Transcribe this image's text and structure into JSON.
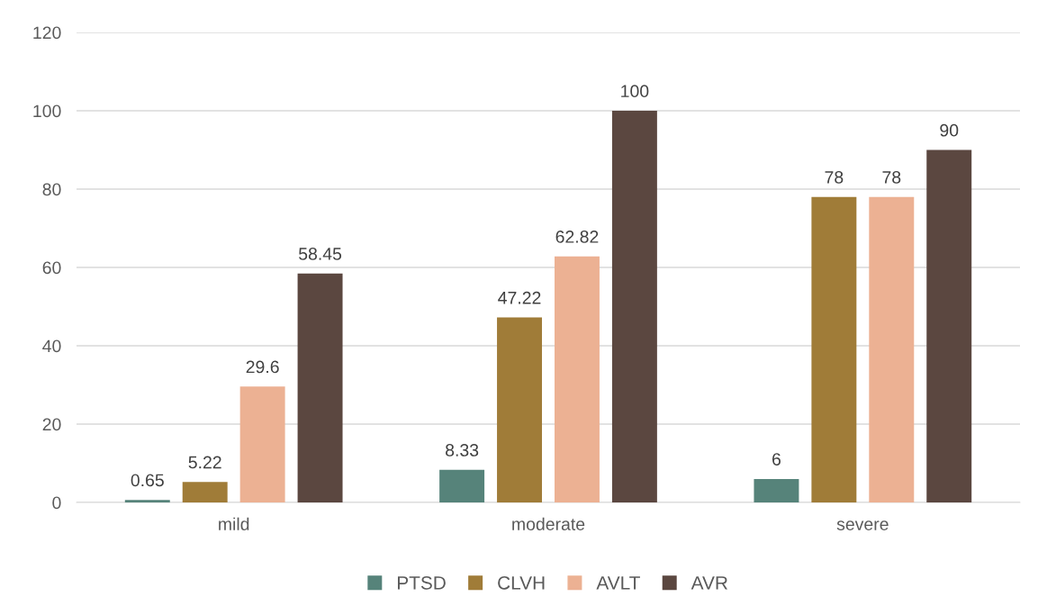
{
  "chart_data": {
    "type": "bar",
    "categories": [
      "mild",
      "moderate",
      "severe"
    ],
    "series": [
      {
        "name": "PTSD",
        "color": "#56837a",
        "values": [
          0.65,
          8.33,
          6
        ]
      },
      {
        "name": "CLVH",
        "color": "#a07c38",
        "values": [
          5.22,
          47.22,
          78
        ]
      },
      {
        "name": "AVLT",
        "color": "#ecb193",
        "values": [
          29.6,
          62.82,
          78
        ]
      },
      {
        "name": "AVR",
        "color": "#5b4740",
        "values": [
          58.45,
          100,
          90
        ]
      }
    ],
    "ylim": [
      0,
      120
    ],
    "yticks": [
      0,
      20,
      40,
      60,
      80,
      100,
      120
    ],
    "grid": "y",
    "legend": "bottom",
    "data_labels": true
  }
}
